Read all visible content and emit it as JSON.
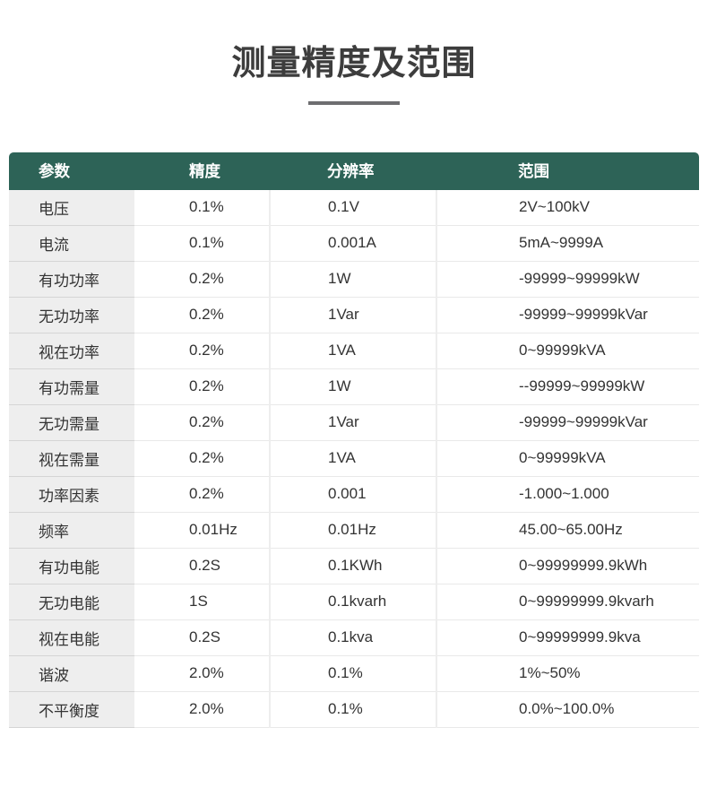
{
  "page": {
    "title": "测量精度及范围"
  },
  "colors": {
    "header_bg": "#2d6357",
    "header_text": "#ffffff",
    "param_column_bg": "#eeeeee",
    "title_underline": "#6d6d70",
    "body_text": "#333333"
  },
  "table": {
    "columns": [
      "参数",
      "精度",
      "分辨率",
      "范围"
    ],
    "rows": [
      {
        "param": "电压",
        "accuracy": "0.1%",
        "resolution": "0.1V",
        "range": "2V~100kV"
      },
      {
        "param": "电流",
        "accuracy": "0.1%",
        "resolution": "0.001A",
        "range": "5mA~9999A"
      },
      {
        "param": "有功功率",
        "accuracy": "0.2%",
        "resolution": "1W",
        "range": "-99999~99999kW"
      },
      {
        "param": "无功功率",
        "accuracy": "0.2%",
        "resolution": "1Var",
        "range": "-99999~99999kVar"
      },
      {
        "param": "视在功率",
        "accuracy": "0.2%",
        "resolution": "1VA",
        "range": "0~99999kVA"
      },
      {
        "param": "有功需量",
        "accuracy": "0.2%",
        "resolution": "1W",
        "range": "--99999~99999kW"
      },
      {
        "param": "无功需量",
        "accuracy": "0.2%",
        "resolution": "1Var",
        "range": "-99999~99999kVar"
      },
      {
        "param": "视在需量",
        "accuracy": "0.2%",
        "resolution": "1VA",
        "range": "0~99999kVA"
      },
      {
        "param": "功率因素",
        "accuracy": "0.2%",
        "resolution": "0.001",
        "range": "-1.000~1.000"
      },
      {
        "param": "频率",
        "accuracy": "0.01Hz",
        "resolution": "0.01Hz",
        "range": "45.00~65.00Hz"
      },
      {
        "param": "有功电能",
        "accuracy": "0.2S",
        "resolution": "0.1KWh",
        "range": "0~99999999.9kWh"
      },
      {
        "param": "无功电能",
        "accuracy": "1S",
        "resolution": "0.1kvarh",
        "range": "0~99999999.9kvarh"
      },
      {
        "param": "视在电能",
        "accuracy": "0.2S",
        "resolution": "0.1kva",
        "range": "0~99999999.9kva"
      },
      {
        "param": "谐波",
        "accuracy": "2.0%",
        "resolution": "0.1%",
        "range": "1%~50%"
      },
      {
        "param": "不平衡度",
        "accuracy": "2.0%",
        "resolution": "0.1%",
        "range": "0.0%~100.0%"
      }
    ]
  }
}
